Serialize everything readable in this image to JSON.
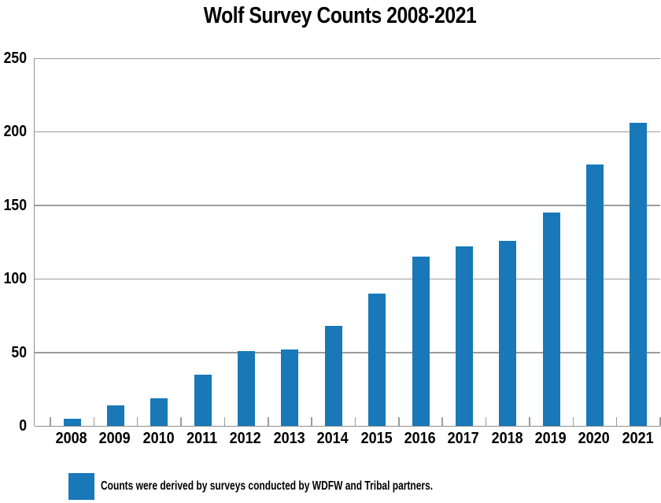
{
  "chart_data": {
    "type": "bar",
    "title": "Wolf Survey Counts 2008-2021",
    "categories": [
      "2008",
      "2009",
      "2010",
      "2011",
      "2012",
      "2013",
      "2014",
      "2015",
      "2016",
      "2017",
      "2018",
      "2019",
      "2020",
      "2021"
    ],
    "values": [
      5,
      14,
      19,
      35,
      51,
      52,
      68,
      90,
      115,
      122,
      126,
      145,
      178,
      206
    ],
    "xlabel": "",
    "ylabel": "",
    "ylim": [
      0,
      250
    ],
    "yticks": [
      0,
      50,
      100,
      150,
      200,
      250
    ],
    "grid": "horizontal",
    "legend": "Counts were derived by surveys conducted by WDFW and Tribal partners.",
    "legend_position": "bottom-left",
    "bar_color": "#1878b8",
    "grid_color": "#9c9c9c",
    "axis_color": "#8f8f8f",
    "text_color": "#000000"
  }
}
